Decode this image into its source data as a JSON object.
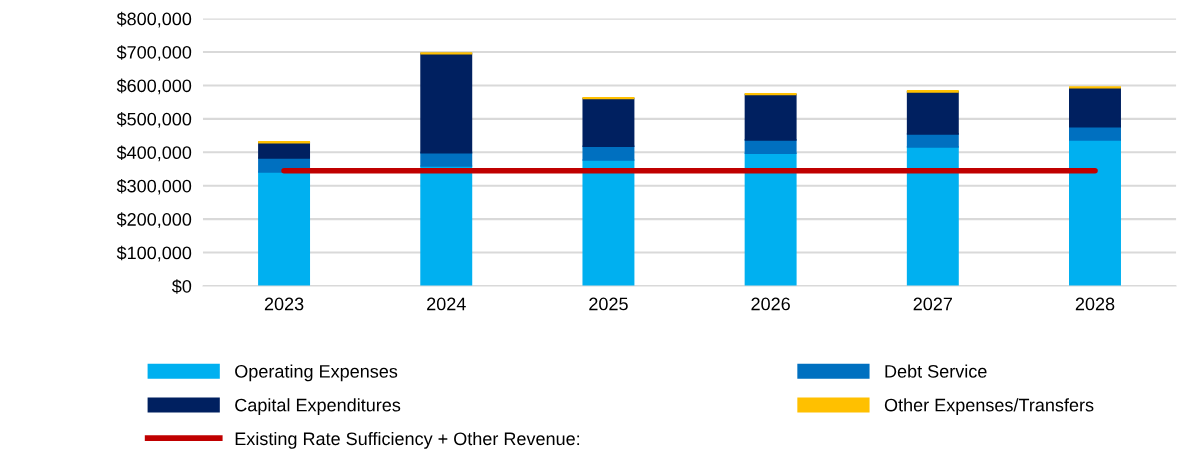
{
  "chart_data": {
    "type": "bar",
    "stacked": true,
    "categories": [
      "2023",
      "2024",
      "2025",
      "2026",
      "2027",
      "2028"
    ],
    "series": [
      {
        "name": "Operating Expenses",
        "color": "#00b0f0",
        "values": [
          341000,
          359000,
          377000,
          397000,
          416000,
          437000
        ]
      },
      {
        "name": "Debt Service",
        "color": "#0070c0",
        "values": [
          42000,
          40000,
          41000,
          40000,
          39000,
          40000
        ]
      },
      {
        "name": "Capital Expenditures",
        "color": "#002060",
        "values": [
          46000,
          296000,
          143000,
          136000,
          126000,
          116000
        ]
      },
      {
        "name": "Other Expenses/Transfers",
        "color": "#ffc000",
        "values": [
          2000,
          2000,
          2000,
          2000,
          3000,
          2000
        ]
      },
      {
        "name": "Existing Rate Sufficiency + Other Revenue:",
        "type": "line",
        "color": "#c00000",
        "values": [
          345000,
          345000,
          345000,
          345000,
          345000,
          345000
        ]
      }
    ],
    "ylim": [
      0,
      800000
    ],
    "yticks": [
      {
        "value": 0,
        "label": "$0"
      },
      {
        "value": 100000,
        "label": "$100,000"
      },
      {
        "value": 200000,
        "label": "$200,000"
      },
      {
        "value": 300000,
        "label": "$300,000"
      },
      {
        "value": 400000,
        "label": "$400,000"
      },
      {
        "value": 500000,
        "label": "$500,000"
      },
      {
        "value": 600000,
        "label": "$600,000"
      },
      {
        "value": 700000,
        "label": "$700,000"
      },
      {
        "value": 800000,
        "label": "$800,000"
      }
    ],
    "grid": "y",
    "legend": "bottom"
  }
}
